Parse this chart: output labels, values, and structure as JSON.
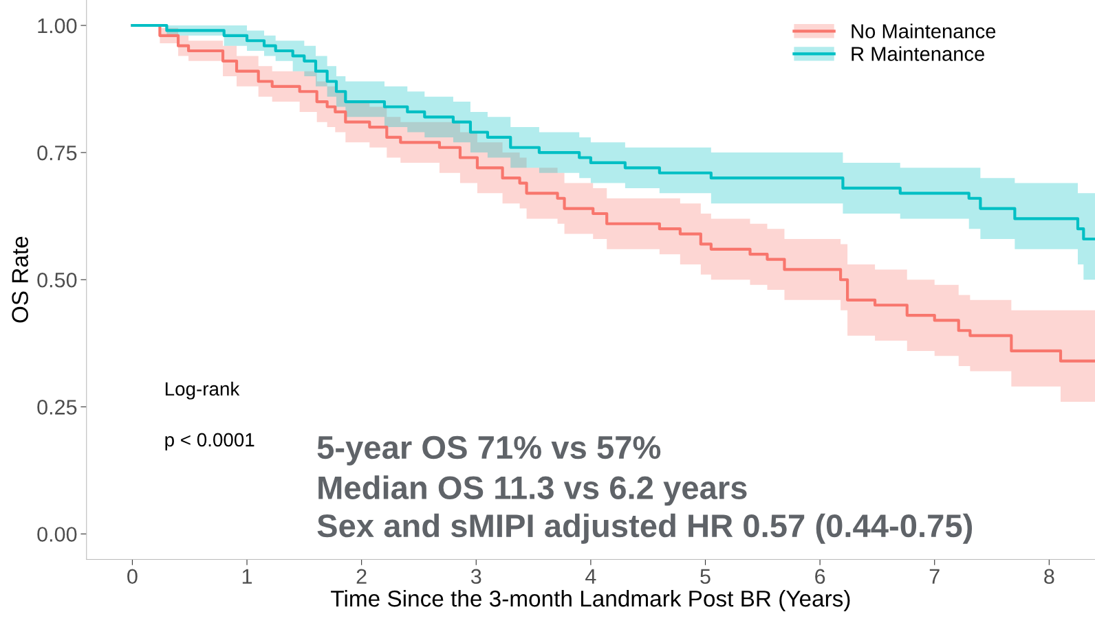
{
  "chart_data": {
    "type": "step",
    "xlabel": "Time Since the 3-month Landmark Post BR (Years)",
    "ylabel": "OS Rate",
    "xlim": [
      -0.4,
      8.4
    ],
    "xticks": [
      0,
      1,
      2,
      3,
      4,
      5,
      6,
      7,
      8
    ],
    "ylim": [
      -0.05,
      1.05
    ],
    "yticks": [
      {
        "value": 0,
        "label": "0.00"
      },
      {
        "value": 0.25,
        "label": "0.25"
      },
      {
        "value": 0.5,
        "label": "0.50"
      },
      {
        "value": 0.75,
        "label": "0.75"
      },
      {
        "value": 1,
        "label": "1.00"
      }
    ],
    "grid": false,
    "legend": "top right",
    "annotations": [
      "Log-rank",
      "p < 0.0001",
      "5-year OS 71% vs 57%",
      "Median OS 11.3 vs 6.2 years",
      "Sex and sMIPI adjusted HR 0.57 (0.44-0.75)"
    ],
    "series": [
      {
        "name": "No Maintenance",
        "color": "#f8766d",
        "x": [
          0,
          0.24,
          0.4,
          0.49,
          0.79,
          0.91,
          1.1,
          1.22,
          1.46,
          1.61,
          1.7,
          1.77,
          1.86,
          2.07,
          2.22,
          2.34,
          2.68,
          2.86,
          3.01,
          3.23,
          3.38,
          3.44,
          3.71,
          3.77,
          4.02,
          4.14,
          4.6,
          4.78,
          4.96,
          5.05,
          5.39,
          5.54,
          5.69,
          6.18,
          6.24,
          6.48,
          6.76,
          7.0,
          7.21,
          7.31,
          7.67,
          8.1,
          8.4
        ],
        "values": [
          1,
          0.98,
          0.96,
          0.95,
          0.93,
          0.91,
          0.89,
          0.88,
          0.87,
          0.85,
          0.84,
          0.83,
          0.81,
          0.8,
          0.78,
          0.77,
          0.76,
          0.74,
          0.72,
          0.7,
          0.69,
          0.67,
          0.66,
          0.64,
          0.63,
          0.61,
          0.6,
          0.59,
          0.57,
          0.56,
          0.55,
          0.54,
          0.52,
          0.5,
          0.46,
          0.45,
          0.43,
          0.42,
          0.4,
          0.39,
          0.36,
          0.34,
          0.34
        ],
        "lower": [
          1,
          0.965,
          0.94,
          0.93,
          0.9,
          0.88,
          0.86,
          0.85,
          0.83,
          0.81,
          0.8,
          0.79,
          0.77,
          0.76,
          0.74,
          0.73,
          0.71,
          0.69,
          0.67,
          0.65,
          0.64,
          0.62,
          0.61,
          0.59,
          0.58,
          0.56,
          0.55,
          0.53,
          0.51,
          0.5,
          0.49,
          0.48,
          0.46,
          0.44,
          0.39,
          0.38,
          0.36,
          0.35,
          0.33,
          0.32,
          0.29,
          0.26,
          0.26
        ],
        "upper": [
          1,
          0.995,
          0.98,
          0.97,
          0.96,
          0.94,
          0.92,
          0.91,
          0.91,
          0.89,
          0.88,
          0.87,
          0.85,
          0.84,
          0.82,
          0.81,
          0.81,
          0.79,
          0.77,
          0.75,
          0.74,
          0.72,
          0.71,
          0.69,
          0.68,
          0.66,
          0.66,
          0.65,
          0.63,
          0.62,
          0.61,
          0.6,
          0.58,
          0.57,
          0.53,
          0.52,
          0.5,
          0.49,
          0.47,
          0.46,
          0.44,
          0.44,
          0.45
        ]
      },
      {
        "name": "R Maintenance",
        "color": "#00bfc4",
        "x": [
          0,
          0.3,
          0.8,
          1.0,
          1.15,
          1.25,
          1.4,
          1.5,
          1.6,
          1.7,
          1.78,
          1.86,
          2.2,
          2.4,
          2.55,
          2.8,
          2.95,
          3.1,
          3.3,
          3.55,
          3.9,
          4.0,
          4.3,
          4.6,
          5.05,
          6.2,
          6.7,
          7.3,
          7.4,
          7.7,
          8.25,
          8.3,
          8.4
        ],
        "values": [
          1,
          0.99,
          0.98,
          0.97,
          0.96,
          0.95,
          0.94,
          0.93,
          0.91,
          0.89,
          0.87,
          0.85,
          0.84,
          0.83,
          0.82,
          0.81,
          0.79,
          0.78,
          0.76,
          0.75,
          0.74,
          0.73,
          0.72,
          0.71,
          0.7,
          0.68,
          0.67,
          0.66,
          0.64,
          0.62,
          0.6,
          0.58,
          0.58
        ],
        "lower": [
          1,
          0.98,
          0.96,
          0.95,
          0.94,
          0.93,
          0.91,
          0.9,
          0.88,
          0.86,
          0.84,
          0.82,
          0.8,
          0.79,
          0.78,
          0.77,
          0.75,
          0.74,
          0.72,
          0.71,
          0.7,
          0.69,
          0.68,
          0.67,
          0.65,
          0.63,
          0.62,
          0.6,
          0.58,
          0.56,
          0.53,
          0.5,
          0.5
        ],
        "upper": [
          1,
          1.0,
          1.0,
          0.99,
          0.98,
          0.97,
          0.97,
          0.96,
          0.94,
          0.92,
          0.9,
          0.89,
          0.88,
          0.87,
          0.86,
          0.85,
          0.83,
          0.82,
          0.8,
          0.79,
          0.78,
          0.77,
          0.76,
          0.76,
          0.75,
          0.73,
          0.72,
          0.72,
          0.7,
          0.69,
          0.67,
          0.67,
          0.67
        ]
      }
    ]
  }
}
